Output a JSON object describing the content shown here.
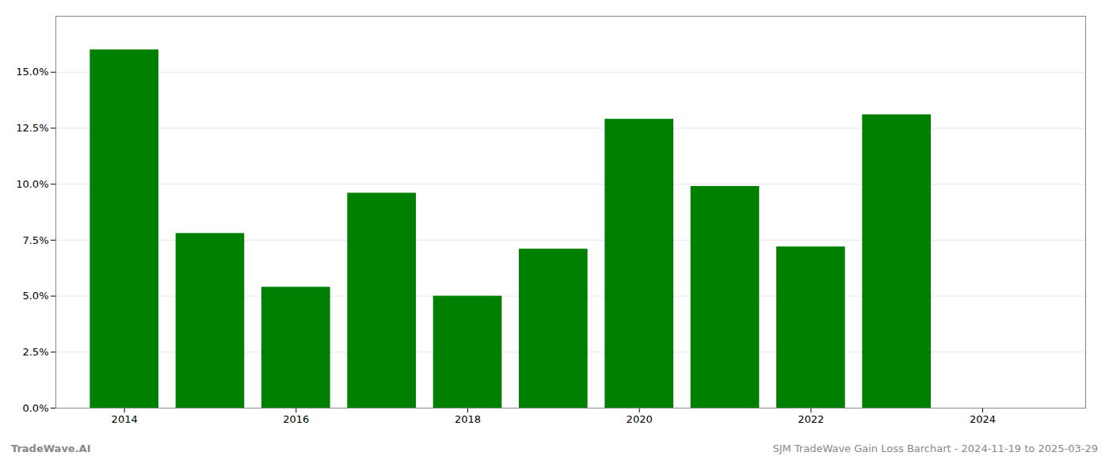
{
  "chart_data": {
    "type": "bar",
    "x": [
      2014,
      2015,
      2016,
      2017,
      2018,
      2019,
      2020,
      2021,
      2022,
      2023,
      2024
    ],
    "values": [
      0.16,
      0.078,
      0.054,
      0.096,
      0.05,
      0.071,
      0.129,
      0.099,
      0.072,
      0.131,
      null
    ],
    "color": "#008000",
    "xlim": [
      2013.2,
      2025.2
    ],
    "xticks": [
      2014,
      2016,
      2018,
      2020,
      2022,
      2024
    ],
    "ylim": [
      0,
      0.175
    ],
    "yticks": [
      {
        "value": 0.0,
        "label": "0.0%"
      },
      {
        "value": 0.025,
        "label": "2.5%"
      },
      {
        "value": 0.05,
        "label": "5.0%"
      },
      {
        "value": 0.075,
        "label": "7.5%"
      },
      {
        "value": 0.1,
        "label": "10.0%"
      },
      {
        "value": 0.125,
        "label": "12.5%"
      },
      {
        "value": 0.15,
        "label": "15.0%"
      }
    ],
    "grid": true,
    "annotations": [
      "TradeWave.AI",
      "SJM TradeWave Gain Loss Barchart - 2024-11-19 to 2025-03-29"
    ]
  }
}
